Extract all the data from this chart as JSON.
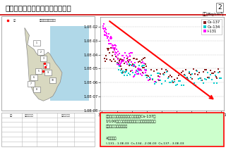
{
  "title": "発電所西門付近ダスト放射能濃度",
  "page_num": "2",
  "chart_title": "西門(Bq/cm³)",
  "x_labels": [
    "3/11",
    "4/11",
    "5/11",
    "6/11",
    "7/11",
    "8/11",
    "9/11",
    "10/11",
    "11/11"
  ],
  "y_tick_vals": [
    0.01,
    0.001,
    0.0001,
    1e-05,
    1e-06,
    1e-07,
    1e-08
  ],
  "y_tick_labels": [
    "1.0E-02",
    "1.0E-03",
    "1.0E-04",
    "1.0E-05",
    "1.0E-06",
    "1.0E-07",
    "1.0E-08"
  ],
  "i131_color": "#FF00FF",
  "cs134_color": "#00CCCC",
  "cs137_color": "#8B2020",
  "bg_color": "#FFFFFF",
  "map_bg": "#C8E8C0",
  "annotation_bg": "#CCFFCC",
  "annotation_border": "#FF0000",
  "header_line_color": "#CC0000",
  "title_fontsize": 7.5,
  "arrow_color": "#FF0000"
}
